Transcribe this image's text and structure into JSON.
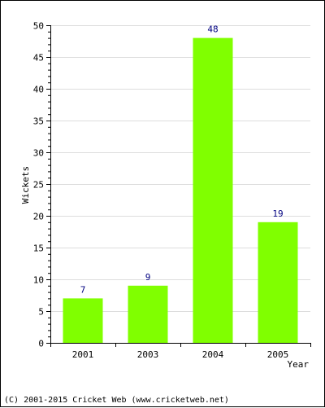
{
  "chart_data": {
    "type": "bar",
    "categories": [
      "2001",
      "2003",
      "2004",
      "2005"
    ],
    "values": [
      7,
      9,
      48,
      19
    ],
    "data_labels": [
      "7",
      "9",
      "48",
      "19"
    ],
    "xlabel": "Year",
    "ylabel": "Wickets",
    "ylim": [
      0,
      50
    ],
    "yticks": [
      "0",
      "5",
      "10",
      "15",
      "20",
      "25",
      "30",
      "35",
      "40",
      "45",
      "50"
    ],
    "grid": true,
    "bar_color": "#80ff00",
    "label_color": "#000080",
    "grid_color": "#dddddd"
  },
  "footer": {
    "copyright": "(C) 2001-2015 Cricket Web (www.cricketweb.net)"
  }
}
